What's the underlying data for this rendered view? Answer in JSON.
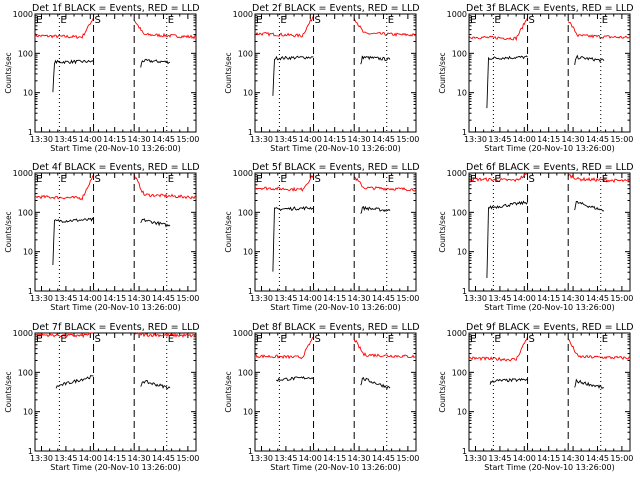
{
  "figure": {
    "xlabel": "Start Time (20-Nov-10 13:26:00)",
    "ylabel": "Counts/sec",
    "x_ticks": [
      "13:30",
      "13:45",
      "14:00",
      "14:15",
      "14:30",
      "14:45",
      "15:00"
    ],
    "y_ticks": [
      "1",
      "10",
      "100",
      "1000"
    ],
    "markers": [
      "E",
      "S",
      "E"
    ]
  },
  "chart_data": [
    {
      "type": "line",
      "title": "Det 1f BLACK = Events, RED = LLD",
      "xlabel": "Start Time (20-Nov-10 13:26:00)",
      "ylabel": "Counts/sec",
      "yscale": "log",
      "ylim": [
        1,
        1000
      ],
      "series": [
        {
          "color": "#ff0000",
          "segments": [
            [
              {
                "t": "13:26",
                "v": 280
              },
              {
                "t": "13:55",
                "v": 260
              },
              {
                "t": "14:02",
                "v": 800
              }
            ],
            [
              {
                "t": "14:27",
                "v": 700
              },
              {
                "t": "14:33",
                "v": 300
              },
              {
                "t": "15:05",
                "v": 260
              }
            ]
          ]
        },
        {
          "color": "#000000",
          "segments": [
            [
              {
                "t": "13:37",
                "v": 10
              },
              {
                "t": "13:38",
                "v": 60
              },
              {
                "t": "14:02",
                "v": 62
              }
            ],
            [
              {
                "t": "14:31",
                "v": 45
              },
              {
                "t": "14:32",
                "v": 65
              },
              {
                "t": "14:49",
                "v": 60
              }
            ]
          ]
        }
      ]
    },
    {
      "type": "line",
      "title": "Det 2f BLACK = Events, RED = LLD",
      "xlabel": "Start Time (20-Nov-10 13:26:00)",
      "ylabel": "Counts/sec",
      "yscale": "log",
      "ylim": [
        1,
        1000
      ],
      "series": [
        {
          "color": "#ff0000",
          "segments": [
            [
              {
                "t": "13:26",
                "v": 320
              },
              {
                "t": "13:55",
                "v": 280
              },
              {
                "t": "14:02",
                "v": 900
              }
            ],
            [
              {
                "t": "14:27",
                "v": 800
              },
              {
                "t": "14:33",
                "v": 320
              },
              {
                "t": "15:05",
                "v": 290
              }
            ]
          ]
        },
        {
          "color": "#000000",
          "segments": [
            [
              {
                "t": "13:37",
                "v": 8
              },
              {
                "t": "13:38",
                "v": 75
              },
              {
                "t": "14:02",
                "v": 80
              }
            ],
            [
              {
                "t": "14:31",
                "v": 50
              },
              {
                "t": "14:32",
                "v": 80
              },
              {
                "t": "14:49",
                "v": 70
              }
            ]
          ]
        }
      ]
    },
    {
      "type": "line",
      "title": "Det 3f BLACK = Events, RED = LLD",
      "xlabel": "Start Time (20-Nov-10 13:26:00)",
      "ylabel": "Counts/sec",
      "yscale": "log",
      "ylim": [
        1,
        1000
      ],
      "series": [
        {
          "color": "#ff0000",
          "segments": [
            [
              {
                "t": "13:26",
                "v": 260
              },
              {
                "t": "13:55",
                "v": 240
              },
              {
                "t": "14:02",
                "v": 800
              }
            ],
            [
              {
                "t": "14:27",
                "v": 700
              },
              {
                "t": "14:33",
                "v": 280
              },
              {
                "t": "15:05",
                "v": 250
              }
            ]
          ]
        },
        {
          "color": "#000000",
          "segments": [
            [
              {
                "t": "13:37",
                "v": 4
              },
              {
                "t": "13:38",
                "v": 75
              },
              {
                "t": "14:02",
                "v": 80
              }
            ],
            [
              {
                "t": "14:31",
                "v": 50
              },
              {
                "t": "14:32",
                "v": 80
              },
              {
                "t": "14:49",
                "v": 65
              }
            ]
          ]
        }
      ]
    },
    {
      "type": "line",
      "title": "Det 4f BLACK = Events, RED = LLD",
      "xlabel": "Start Time (20-Nov-10 13:26:00)",
      "ylabel": "Counts/sec",
      "yscale": "log",
      "ylim": [
        1,
        1000
      ],
      "series": [
        {
          "color": "#ff0000",
          "segments": [
            [
              {
                "t": "13:26",
                "v": 250
              },
              {
                "t": "13:55",
                "v": 230
              },
              {
                "t": "14:02",
                "v": 900
              }
            ],
            [
              {
                "t": "14:27",
                "v": 900
              },
              {
                "t": "14:33",
                "v": 280
              },
              {
                "t": "15:05",
                "v": 240
              }
            ]
          ]
        },
        {
          "color": "#000000",
          "segments": [
            [
              {
                "t": "13:37",
                "v": 5
              },
              {
                "t": "13:38",
                "v": 60
              },
              {
                "t": "14:02",
                "v": 65
              }
            ],
            [
              {
                "t": "14:31",
                "v": 50
              },
              {
                "t": "14:32",
                "v": 65
              },
              {
                "t": "14:49",
                "v": 45
              }
            ]
          ]
        }
      ]
    },
    {
      "type": "line",
      "title": "Det 5f BLACK = Events, RED = LLD",
      "xlabel": "Start Time (20-Nov-10 13:26:00)",
      "ylabel": "Counts/sec",
      "yscale": "log",
      "ylim": [
        1,
        1000
      ],
      "series": [
        {
          "color": "#ff0000",
          "segments": [
            [
              {
                "t": "13:26",
                "v": 420
              },
              {
                "t": "13:55",
                "v": 380
              },
              {
                "t": "14:02",
                "v": 900
              }
            ],
            [
              {
                "t": "14:27",
                "v": 800
              },
              {
                "t": "14:33",
                "v": 420
              },
              {
                "t": "15:05",
                "v": 380
              }
            ]
          ]
        },
        {
          "color": "#000000",
          "segments": [
            [
              {
                "t": "13:37",
                "v": 3
              },
              {
                "t": "13:38",
                "v": 120
              },
              {
                "t": "14:02",
                "v": 130
              }
            ],
            [
              {
                "t": "14:31",
                "v": 90
              },
              {
                "t": "14:32",
                "v": 130
              },
              {
                "t": "14:49",
                "v": 110
              }
            ]
          ]
        }
      ]
    },
    {
      "type": "line",
      "title": "Det 6f BLACK = Events, RED = LLD",
      "xlabel": "Start Time (20-Nov-10 13:26:00)",
      "ylabel": "Counts/sec",
      "yscale": "log",
      "ylim": [
        1,
        1000
      ],
      "series": [
        {
          "color": "#ff0000",
          "segments": [
            [
              {
                "t": "13:26",
                "v": 700
              },
              {
                "t": "13:55",
                "v": 650
              },
              {
                "t": "14:02",
                "v": 950
              }
            ],
            [
              {
                "t": "14:27",
                "v": 900
              },
              {
                "t": "14:33",
                "v": 700
              },
              {
                "t": "15:05",
                "v": 620
              }
            ]
          ]
        },
        {
          "color": "#000000",
          "segments": [
            [
              {
                "t": "13:37",
                "v": 2
              },
              {
                "t": "13:38",
                "v": 130
              },
              {
                "t": "14:02",
                "v": 180
              }
            ],
            [
              {
                "t": "14:31",
                "v": 120
              },
              {
                "t": "14:32",
                "v": 180
              },
              {
                "t": "14:49",
                "v": 110
              }
            ]
          ]
        }
      ]
    },
    {
      "type": "line",
      "title": "Det 7f BLACK = Events, RED = LLD",
      "xlabel": "Start Time (20-Nov-10 13:26:00)",
      "ylabel": "Counts/sec",
      "yscale": "log",
      "ylim": [
        1,
        1000
      ],
      "series": [
        {
          "color": "#ff0000",
          "segments": [
            [
              {
                "t": "13:26",
                "v": 900
              },
              {
                "t": "13:55",
                "v": 850
              },
              {
                "t": "14:02",
                "v": 1000
              }
            ],
            [
              {
                "t": "14:27",
                "v": 1000
              },
              {
                "t": "14:33",
                "v": 900
              },
              {
                "t": "15:05",
                "v": 850
              }
            ]
          ]
        },
        {
          "color": "#000000",
          "segments": [
            [
              {
                "t": "13:39",
                "v": 40
              },
              {
                "t": "13:40",
                "v": 45
              },
              {
                "t": "14:02",
                "v": 80
              }
            ],
            [
              {
                "t": "14:31",
                "v": 40
              },
              {
                "t": "14:32",
                "v": 60
              },
              {
                "t": "14:49",
                "v": 40
              }
            ]
          ]
        }
      ]
    },
    {
      "type": "line",
      "title": "Det 8f BLACK = Events, RED = LLD",
      "xlabel": "Start Time (20-Nov-10 13:26:00)",
      "ylabel": "Counts/sec",
      "yscale": "log",
      "ylim": [
        1,
        1000
      ],
      "series": [
        {
          "color": "#ff0000",
          "segments": [
            [
              {
                "t": "13:26",
                "v": 260
              },
              {
                "t": "13:55",
                "v": 240
              },
              {
                "t": "14:02",
                "v": 800
              }
            ],
            [
              {
                "t": "14:27",
                "v": 700
              },
              {
                "t": "14:33",
                "v": 280
              },
              {
                "t": "15:05",
                "v": 250
              }
            ]
          ]
        },
        {
          "color": "#000000",
          "segments": [
            [
              {
                "t": "13:39",
                "v": 60
              },
              {
                "t": "13:40",
                "v": 65
              },
              {
                "t": "14:02",
                "v": 75
              }
            ],
            [
              {
                "t": "14:31",
                "v": 45
              },
              {
                "t": "14:32",
                "v": 70
              },
              {
                "t": "14:49",
                "v": 40
              }
            ]
          ]
        }
      ]
    },
    {
      "type": "line",
      "title": "Det 9f BLACK = Events, RED = LLD",
      "xlabel": "Start Time (20-Nov-10 13:26:00)",
      "ylabel": "Counts/sec",
      "yscale": "log",
      "ylim": [
        1,
        1000
      ],
      "series": [
        {
          "color": "#ff0000",
          "segments": [
            [
              {
                "t": "13:26",
                "v": 230
              },
              {
                "t": "13:55",
                "v": 210
              },
              {
                "t": "14:02",
                "v": 800
              }
            ],
            [
              {
                "t": "14:27",
                "v": 700
              },
              {
                "t": "14:33",
                "v": 250
              },
              {
                "t": "15:05",
                "v": 230
              }
            ]
          ]
        },
        {
          "color": "#000000",
          "segments": [
            [
              {
                "t": "13:39",
                "v": 50
              },
              {
                "t": "13:40",
                "v": 60
              },
              {
                "t": "14:02",
                "v": 65
              }
            ],
            [
              {
                "t": "14:31",
                "v": 40
              },
              {
                "t": "14:32",
                "v": 60
              },
              {
                "t": "14:49",
                "v": 40
              }
            ]
          ]
        }
      ]
    }
  ]
}
